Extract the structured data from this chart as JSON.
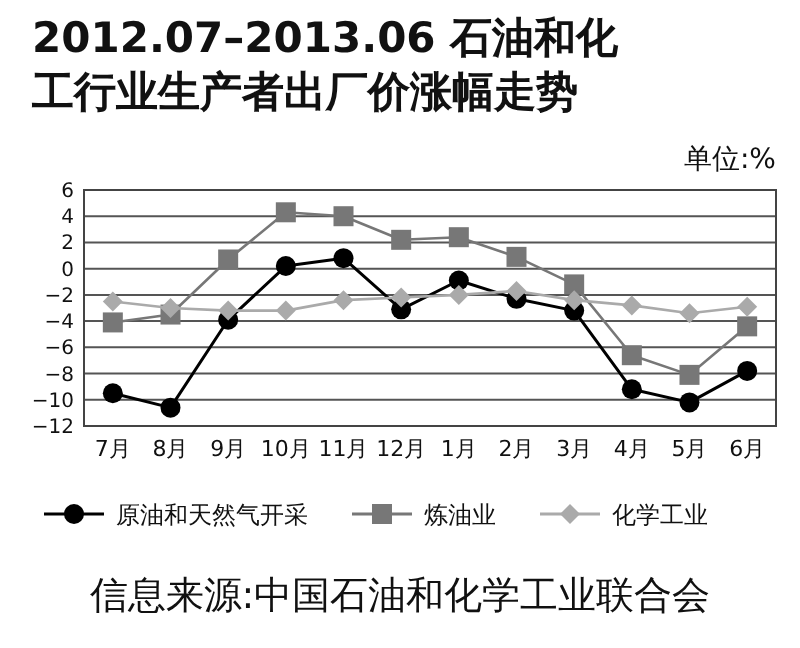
{
  "chart_data": {
    "type": "line",
    "title": "2012.07–2013.06 石油和化工行业生产者出厂价涨幅走势",
    "categories": [
      "7月",
      "8月",
      "9月",
      "10月",
      "11月",
      "12月",
      "1月",
      "2月",
      "3月",
      "4月",
      "5月",
      "6月"
    ],
    "series": [
      {
        "name": "原油和天然气开采",
        "color": "#000000",
        "marker": "circle",
        "values": [
          -9.5,
          -10.6,
          -3.9,
          0.2,
          0.8,
          -3.1,
          -0.9,
          -2.3,
          -3.2,
          -9.2,
          -10.2,
          -7.8
        ]
      },
      {
        "name": "炼油业",
        "color": "#777777",
        "marker": "square",
        "values": [
          -4.1,
          -3.5,
          0.7,
          4.3,
          4.0,
          2.2,
          2.4,
          0.9,
          -1.2,
          -6.6,
          -8.1,
          -4.4
        ]
      },
      {
        "name": "化学工业",
        "color": "#aaaaaa",
        "marker": "diamond",
        "values": [
          -2.5,
          -3.0,
          -3.2,
          -3.2,
          -2.4,
          -2.2,
          -2.0,
          -1.7,
          -2.4,
          -2.8,
          -3.4,
          -2.9
        ]
      }
    ],
    "ylim": [
      -12,
      6
    ],
    "yticks": [
      -12,
      -10,
      -8,
      -6,
      -4,
      -2,
      0,
      2,
      4,
      6
    ],
    "grid": "y",
    "legend": "bottom",
    "annotations": [
      "单位:%",
      "信息来源:中国石油和化学工业联合会"
    ]
  }
}
